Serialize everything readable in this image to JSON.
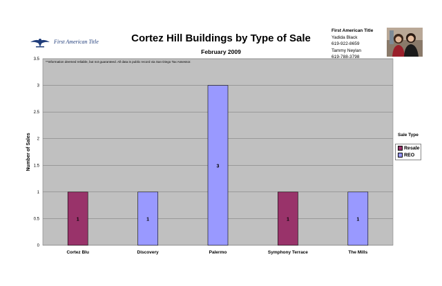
{
  "header": {
    "logo_text": "First American Title",
    "logo_small_text": "FIRST AMERICAN",
    "title": "Cortez Hill Buildings by Type of Sale",
    "subtitle": "February 2009"
  },
  "contact": {
    "company": "First American Title",
    "lines": [
      "Yadida Black",
      "619-922-8659",
      "Tammy Neylan",
      "619-788-3798"
    ]
  },
  "disclaimer": "**Information deemed reliable, but not guaranteed.  All data is public record via San Diego Tax Assessor.",
  "colors": {
    "resale": "#99336a",
    "reo": "#9999ff",
    "plot_bg": "#c0c0c0",
    "grid": "#808080"
  },
  "chart_data": {
    "type": "bar",
    "title": "Cortez Hill Buildings by Type of Sale",
    "subtitle": "February 2009",
    "xlabel": "",
    "ylabel": "Number of Sales",
    "ylim": [
      0,
      3.5
    ],
    "yticks": [
      "0",
      "0.5",
      "1",
      "1.5",
      "2",
      "2.5",
      "3",
      "3.5"
    ],
    "grid": true,
    "legend_title": "Sale Type",
    "legend_position": "right",
    "categories": [
      "Cortez Blu",
      "Discovery",
      "Palermo",
      "Symphony Terrace",
      "The Mills"
    ],
    "series": [
      {
        "name": "Resale",
        "values": [
          1,
          0,
          0,
          1,
          0
        ]
      },
      {
        "name": "REO",
        "values": [
          0,
          1,
          3,
          0,
          1
        ]
      }
    ],
    "data_labels": [
      "1",
      "1",
      "3",
      "1",
      "1"
    ]
  }
}
